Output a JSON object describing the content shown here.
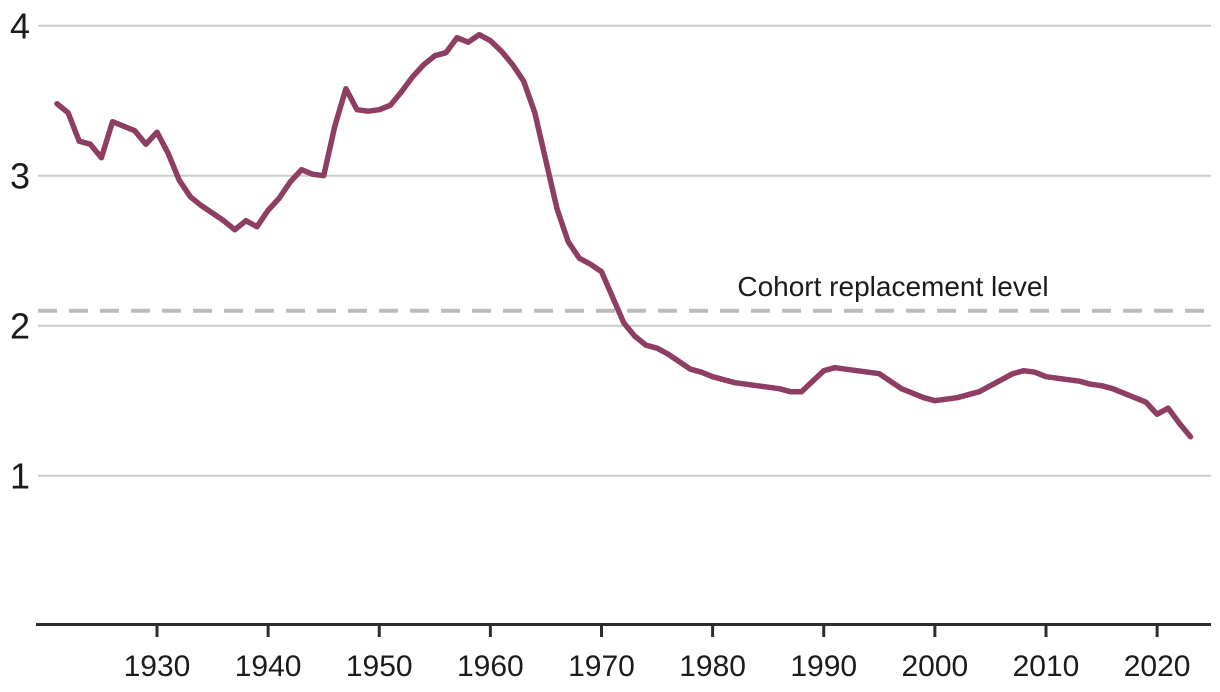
{
  "annotation": {
    "label": "Cohort replacement level"
  },
  "colors": {
    "line": "#8E3D63",
    "gridline": "#CCCCCC",
    "dashed_reference": "#BBBBBB",
    "axis": "#2D2D2D",
    "text": "#1B1B1B"
  },
  "chart_data": {
    "type": "line",
    "title": "",
    "xlabel": "",
    "ylabel": "",
    "grid": "horizontal",
    "legend": "none",
    "xlim": [
      1920,
      2024.8
    ],
    "ylim": [
      0,
      4
    ],
    "x_ticks": [
      1930,
      1940,
      1950,
      1960,
      1970,
      1980,
      1990,
      2000,
      2010,
      2020
    ],
    "y_ticks": [
      1,
      2,
      3,
      4
    ],
    "reference_line": {
      "value": 2.1,
      "label": "Cohort replacement level",
      "style": "dashed"
    },
    "x": [
      1921,
      1922,
      1923,
      1924,
      1925,
      1926,
      1927,
      1928,
      1929,
      1930,
      1931,
      1932,
      1933,
      1934,
      1935,
      1936,
      1937,
      1938,
      1939,
      1940,
      1941,
      1942,
      1943,
      1944,
      1945,
      1946,
      1947,
      1948,
      1949,
      1950,
      1951,
      1952,
      1953,
      1954,
      1955,
      1956,
      1957,
      1958,
      1959,
      1960,
      1961,
      1962,
      1963,
      1964,
      1965,
      1966,
      1967,
      1968,
      1969,
      1970,
      1971,
      1972,
      1973,
      1974,
      1975,
      1976,
      1977,
      1978,
      1979,
      1980,
      1981,
      1982,
      1983,
      1984,
      1985,
      1986,
      1987,
      1988,
      1989,
      1990,
      1991,
      1992,
      1993,
      1994,
      1995,
      1996,
      1997,
      1998,
      1999,
      2000,
      2001,
      2002,
      2003,
      2004,
      2005,
      2006,
      2007,
      2008,
      2009,
      2010,
      2011,
      2012,
      2013,
      2014,
      2015,
      2016,
      2017,
      2018,
      2019,
      2020,
      2021,
      2022,
      2023
    ],
    "values": [
      3.48,
      3.42,
      3.23,
      3.21,
      3.12,
      3.36,
      3.33,
      3.3,
      3.21,
      3.29,
      3.15,
      2.97,
      2.86,
      2.8,
      2.75,
      2.7,
      2.64,
      2.7,
      2.66,
      2.77,
      2.85,
      2.96,
      3.04,
      3.01,
      3.0,
      3.33,
      3.58,
      3.44,
      3.43,
      3.44,
      3.47,
      3.56,
      3.66,
      3.74,
      3.8,
      3.82,
      3.92,
      3.89,
      3.94,
      3.9,
      3.83,
      3.74,
      3.63,
      3.42,
      3.1,
      2.78,
      2.56,
      2.45,
      2.41,
      2.36,
      2.19,
      2.02,
      1.93,
      1.87,
      1.85,
      1.81,
      1.76,
      1.71,
      1.69,
      1.66,
      1.64,
      1.62,
      1.61,
      1.6,
      1.59,
      1.58,
      1.56,
      1.56,
      1.63,
      1.7,
      1.72,
      1.71,
      1.7,
      1.69,
      1.68,
      1.63,
      1.58,
      1.55,
      1.52,
      1.5,
      1.51,
      1.52,
      1.54,
      1.56,
      1.6,
      1.64,
      1.68,
      1.7,
      1.69,
      1.66,
      1.65,
      1.64,
      1.63,
      1.61,
      1.6,
      1.58,
      1.55,
      1.52,
      1.49,
      1.41,
      1.45,
      1.35,
      1.26
    ]
  }
}
